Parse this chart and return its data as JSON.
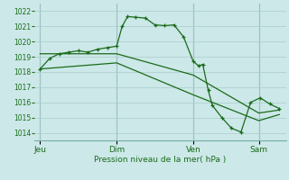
{
  "bg_color": "#cce8e8",
  "grid_color": "#aacccc",
  "line_color": "#1a6b1a",
  "title": "Pression niveau de la mer( hPa )",
  "ylim": [
    1013.5,
    1022.5
  ],
  "yticks": [
    1014,
    1015,
    1016,
    1017,
    1018,
    1019,
    1020,
    1021,
    1022
  ],
  "day_labels": [
    "Jeu",
    "Dim",
    "Ven",
    "Sam"
  ],
  "day_positions": [
    0,
    56,
    112,
    160
  ],
  "xlim": [
    -4,
    180
  ],
  "series1_x": [
    0,
    7,
    14,
    21,
    28,
    35,
    42,
    49,
    56,
    60,
    64,
    70,
    77,
    84,
    91,
    98,
    105,
    112,
    116,
    119,
    123,
    126,
    133,
    140,
    147,
    154,
    161,
    168,
    175
  ],
  "series1_y": [
    1018.2,
    1018.9,
    1019.2,
    1019.3,
    1019.4,
    1019.3,
    1019.5,
    1019.6,
    1019.7,
    1021.0,
    1021.65,
    1021.6,
    1021.55,
    1021.1,
    1021.05,
    1021.1,
    1020.3,
    1018.7,
    1018.4,
    1018.5,
    1016.8,
    1015.8,
    1015.0,
    1014.3,
    1014.05,
    1016.0,
    1016.3,
    1015.9,
    1015.6
  ],
  "series2_x": [
    0,
    56,
    112,
    160,
    175
  ],
  "series2_y": [
    1019.2,
    1019.2,
    1017.8,
    1015.3,
    1015.5
  ],
  "series3_x": [
    0,
    56,
    112,
    160,
    175
  ],
  "series3_y": [
    1018.2,
    1018.6,
    1016.5,
    1014.8,
    1015.2
  ]
}
